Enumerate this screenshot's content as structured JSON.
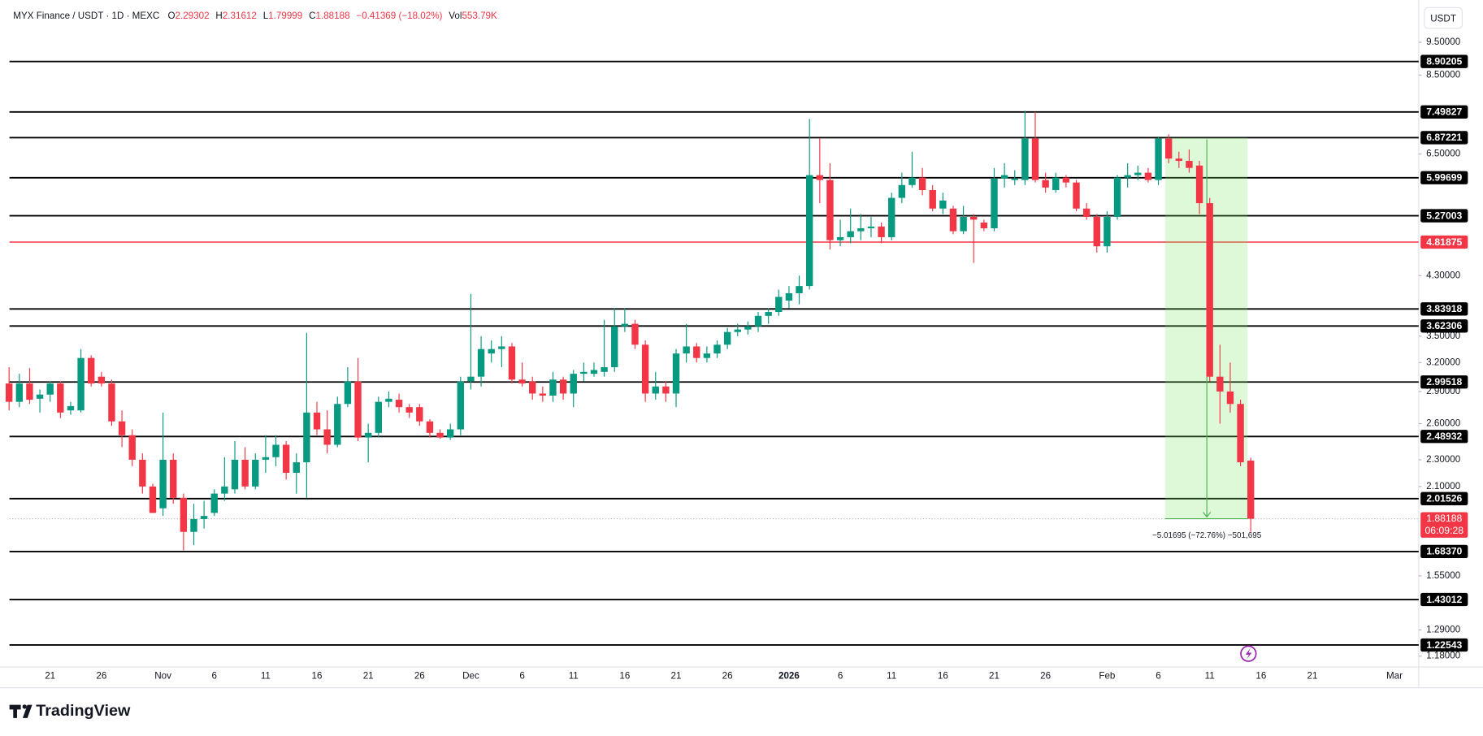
{
  "chart_data": {
    "type": "candlestick",
    "title": "MYX Finance / USDT · 1D · MEXC",
    "ohlc_readout": [
      {
        "name": "O",
        "value": "2.29302"
      },
      {
        "name": "H",
        "value": "2.31612"
      },
      {
        "name": "L",
        "value": "1.79999"
      },
      {
        "name": "C",
        "value": "1.88188"
      }
    ],
    "change": "−0.41369 (−18.02%)",
    "volume_name": "Vol",
    "volume": "553.79K",
    "currency": "USDT",
    "brand": "TradingView",
    "up_color": "#089981",
    "down_color": "#f23645",
    "log_scale": true,
    "ylim": [
      1.07,
      10.9
    ],
    "yticks": [
      {
        "value": 9.5,
        "label": "9.50000"
      },
      {
        "value": 8.5,
        "label": "8.50000"
      },
      {
        "value": 6.5,
        "label": "6.50000"
      },
      {
        "value": 4.3,
        "label": "4.30000"
      },
      {
        "value": 3.5,
        "label": "3.50000"
      },
      {
        "value": 3.2,
        "label": "3.20000"
      },
      {
        "value": 2.9,
        "label": "2.90000"
      },
      {
        "value": 2.6,
        "label": "2.60000"
      },
      {
        "value": 2.3,
        "label": "2.30000"
      },
      {
        "value": 2.1,
        "label": "2.10000"
      },
      {
        "value": 1.55,
        "label": "1.55000"
      },
      {
        "value": 1.29,
        "label": "1.29000"
      },
      {
        "value": 1.18,
        "label": "1.18000"
      }
    ],
    "levels": [
      {
        "value": 8.90205,
        "color": "#000000"
      },
      {
        "value": 7.49827,
        "color": "#000000"
      },
      {
        "value": 6.87221,
        "color": "#000000"
      },
      {
        "value": 5.99699,
        "color": "#000000"
      },
      {
        "value": 5.27003,
        "color": "#000000"
      },
      {
        "value": 4.81875,
        "color": "#f23645"
      },
      {
        "value": 3.83918,
        "color": "#000000"
      },
      {
        "value": 3.62306,
        "color": "#000000"
      },
      {
        "value": 2.99518,
        "color": "#000000"
      },
      {
        "value": 2.48932,
        "color": "#000000"
      },
      {
        "value": 2.01526,
        "color": "#000000"
      },
      {
        "value": 1.6837,
        "label": "1.68370",
        "color": "#000000"
      },
      {
        "value": 1.43012,
        "color": "#000000"
      },
      {
        "value": 1.22543,
        "color": "#000000"
      }
    ],
    "last_price": {
      "value": 1.88188,
      "countdown": "06:09:28"
    },
    "measure_label": "−5.01695 (−72.76%) −501,695",
    "categories": [
      null,
      null,
      null,
      null,
      "21",
      null,
      null,
      null,
      null,
      "26",
      null,
      null,
      null,
      null,
      null,
      "Nov",
      null,
      null,
      null,
      null,
      "6",
      null,
      null,
      null,
      null,
      "11",
      null,
      null,
      null,
      null,
      "16",
      null,
      null,
      null,
      null,
      "21",
      null,
      null,
      null,
      null,
      "26",
      null,
      null,
      null,
      null,
      "Dec",
      null,
      null,
      null,
      null,
      "6",
      null,
      null,
      null,
      null,
      "11",
      null,
      null,
      null,
      null,
      "16",
      null,
      null,
      null,
      null,
      "21",
      null,
      null,
      null,
      null,
      "26",
      null,
      null,
      null,
      null,
      null,
      "2026",
      null,
      null,
      null,
      null,
      "6",
      null,
      null,
      null,
      null,
      "11",
      null,
      null,
      null,
      null,
      "16",
      null,
      null,
      null,
      null,
      "21",
      null,
      null,
      null,
      null,
      "26",
      null,
      null,
      null,
      null,
      null,
      "Feb",
      null,
      null,
      null,
      null,
      "6",
      null,
      null,
      null,
      null,
      "11",
      null,
      null,
      null,
      null,
      "16",
      null,
      null,
      null,
      null,
      "21",
      null,
      null,
      null,
      null,
      null,
      null,
      null,
      "Mar"
    ],
    "open": [
      2.98,
      2.8,
      2.98,
      2.83,
      2.87,
      2.98,
      2.72,
      2.72,
      3.25,
      3.05,
      2.98,
      2.62,
      2.5,
      2.3,
      2.1,
      1.95,
      2.3,
      2.02,
      1.8,
      1.88,
      1.92,
      2.05,
      2.08,
      2.3,
      2.1,
      2.3,
      2.32,
      2.42,
      2.2,
      2.28,
      2.7,
      2.55,
      2.42,
      2.78,
      3.0,
      2.48,
      2.52,
      2.8,
      2.82,
      2.75,
      2.75,
      2.62,
      2.52,
      2.48,
      2.55,
      3.0,
      3.05,
      3.3,
      3.35,
      3.38,
      3.02,
      3.0,
      2.88,
      2.86,
      3.02,
      2.88,
      3.08,
      3.08,
      3.1,
      3.15,
      3.62,
      3.65,
      3.4,
      2.88,
      2.95,
      2.88,
      3.3,
      3.38,
      3.25,
      3.3,
      3.4,
      3.55,
      3.58,
      3.62,
      3.75,
      3.8,
      3.95,
      4.05,
      4.15,
      6.05,
      5.95,
      4.85,
      4.9,
      5.0,
      5.05,
      5.08,
      4.9,
      5.6,
      5.85,
      6.0,
      5.75,
      5.4,
      5.4,
      5.0,
      5.25,
      5.15,
      5.05,
      5.98,
      5.95,
      5.95,
      6.85,
      5.95,
      5.75,
      6.0,
      5.9,
      5.4,
      5.25,
      4.75,
      5.25,
      6.0,
      6.05,
      6.1,
      5.95,
      6.85,
      6.4,
      6.35,
      6.25,
      5.5,
      3.05,
      2.9,
      2.78,
      2.29302,
      null,
      null,
      null,
      null,
      null,
      null,
      null,
      null,
      null,
      null,
      null,
      null,
      null,
      null
    ],
    "high": [
      3.15,
      3.08,
      3.14,
      2.92,
      3.0,
      3.0,
      2.8,
      3.35,
      3.28,
      3.1,
      3.02,
      2.72,
      2.55,
      2.35,
      2.12,
      2.7,
      2.35,
      2.05,
      1.98,
      2.0,
      2.08,
      2.32,
      2.45,
      2.4,
      2.35,
      2.5,
      2.5,
      2.45,
      2.35,
      3.54,
      2.8,
      2.72,
      2.85,
      3.15,
      3.25,
      2.6,
      2.85,
      2.9,
      2.88,
      2.78,
      2.78,
      2.64,
      2.55,
      2.6,
      3.05,
      4.04,
      3.5,
      3.45,
      3.5,
      3.42,
      3.2,
      3.05,
      2.95,
      3.1,
      3.05,
      3.12,
      3.2,
      3.2,
      3.7,
      3.85,
      3.85,
      3.7,
      3.45,
      3.1,
      3.0,
      3.35,
      3.65,
      3.42,
      3.38,
      3.45,
      3.6,
      3.65,
      3.68,
      3.8,
      3.85,
      4.1,
      4.15,
      4.3,
      7.32,
      6.85,
      6.3,
      5.2,
      5.4,
      5.3,
      5.25,
      5.15,
      5.7,
      6.1,
      6.55,
      6.2,
      5.85,
      5.7,
      5.45,
      5.45,
      5.3,
      5.2,
      6.2,
      6.3,
      6.15,
      7.53,
      7.5,
      6.1,
      6.1,
      6.05,
      5.95,
      5.5,
      5.3,
      5.35,
      6.05,
      6.3,
      6.25,
      6.2,
      6.9,
      6.95,
      6.55,
      6.6,
      6.35,
      5.6,
      3.4,
      3.2,
      2.82,
      2.31612,
      null,
      null,
      null,
      null,
      null,
      null,
      null,
      null,
      null,
      null,
      null,
      null,
      null,
      null
    ],
    "low": [
      2.72,
      2.75,
      2.78,
      2.7,
      2.8,
      2.65,
      2.68,
      2.7,
      2.95,
      2.95,
      2.58,
      2.4,
      2.25,
      2.05,
      1.92,
      1.9,
      1.98,
      1.69,
      1.72,
      1.82,
      1.9,
      2.0,
      2.05,
      2.08,
      2.08,
      2.2,
      2.25,
      2.15,
      2.05,
      2.02,
      2.5,
      2.35,
      2.4,
      2.75,
      2.45,
      2.28,
      2.48,
      2.75,
      2.7,
      2.65,
      2.58,
      2.48,
      2.47,
      2.46,
      2.5,
      2.92,
      2.95,
      3.2,
      3.15,
      2.98,
      2.95,
      2.82,
      2.8,
      2.8,
      2.82,
      2.75,
      3.0,
      3.05,
      3.05,
      3.1,
      3.55,
      3.35,
      2.8,
      2.82,
      2.8,
      2.75,
      3.2,
      3.2,
      3.2,
      3.25,
      3.35,
      3.5,
      3.52,
      3.55,
      3.65,
      3.75,
      3.85,
      3.9,
      4.1,
      5.5,
      4.7,
      4.75,
      4.8,
      4.85,
      4.9,
      4.8,
      4.85,
      5.5,
      5.8,
      5.65,
      5.35,
      5.3,
      4.95,
      4.95,
      4.49,
      5.0,
      5.0,
      5.8,
      5.85,
      5.85,
      5.9,
      5.7,
      5.7,
      5.8,
      5.35,
      5.2,
      4.65,
      4.65,
      5.2,
      5.8,
      5.95,
      5.9,
      5.85,
      6.3,
      6.2,
      6.1,
      5.3,
      3.0,
      2.6,
      2.7,
      2.25,
      1.79999,
      null,
      null,
      null,
      null,
      null,
      null,
      null,
      null,
      null,
      null,
      null,
      null,
      null,
      null
    ],
    "close": [
      2.8,
      2.98,
      2.82,
      2.87,
      2.98,
      2.7,
      2.76,
      3.25,
      2.98,
      2.98,
      2.62,
      2.5,
      2.3,
      2.1,
      1.92,
      2.3,
      2.02,
      1.8,
      1.88,
      1.9,
      2.05,
      2.1,
      2.3,
      2.1,
      2.3,
      2.32,
      2.42,
      2.2,
      2.28,
      2.7,
      2.55,
      2.42,
      2.78,
      3.0,
      2.48,
      2.52,
      2.8,
      2.83,
      2.75,
      2.7,
      2.62,
      2.52,
      2.48,
      2.55,
      3.0,
      3.05,
      3.35,
      3.35,
      3.38,
      3.02,
      2.98,
      2.88,
      2.86,
      3.02,
      2.88,
      3.08,
      3.1,
      3.12,
      3.15,
      3.62,
      3.65,
      3.4,
      2.88,
      2.95,
      2.88,
      3.3,
      3.38,
      3.25,
      3.3,
      3.4,
      3.55,
      3.58,
      3.62,
      3.75,
      3.8,
      4.0,
      4.05,
      4.15,
      6.05,
      5.95,
      4.85,
      4.9,
      5.0,
      5.05,
      5.08,
      4.9,
      5.6,
      5.85,
      6.0,
      5.75,
      5.4,
      5.55,
      5.0,
      5.25,
      5.2,
      5.05,
      5.98,
      6.05,
      5.98,
      6.85,
      5.95,
      5.8,
      6.0,
      5.9,
      5.4,
      5.25,
      4.75,
      5.25,
      6.0,
      6.05,
      6.1,
      5.95,
      6.85,
      6.4,
      6.35,
      6.2,
      5.5,
      3.05,
      2.9,
      2.78,
      2.28,
      1.88188,
      null,
      null,
      null,
      null,
      null,
      null,
      null,
      null,
      null,
      null,
      null,
      null,
      null,
      null
    ]
  }
}
